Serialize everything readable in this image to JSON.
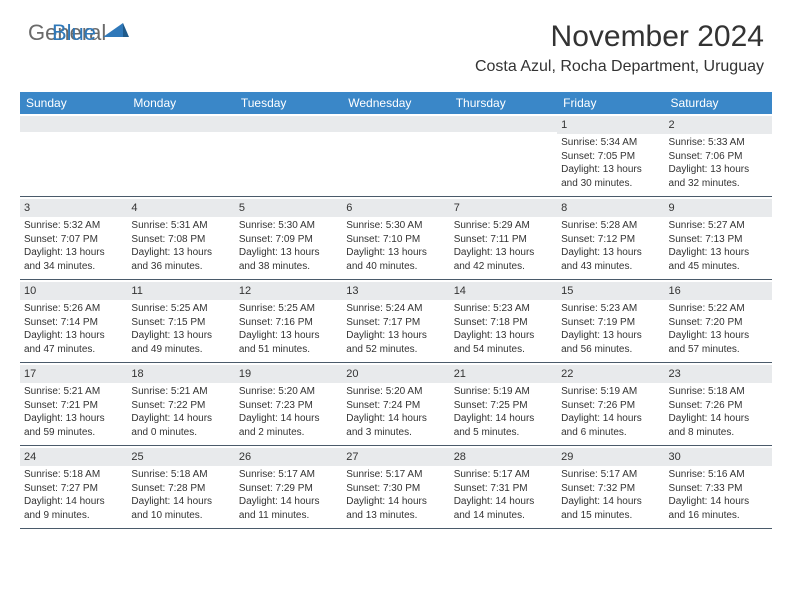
{
  "brand": {
    "text1": "General",
    "text2": "Blue"
  },
  "title": "November 2024",
  "location": "Costa Azul, Rocha Department, Uruguay",
  "colors": {
    "header_bg": "#3a87c8",
    "header_text": "#ffffff",
    "daynum_bg": "#e8eaec",
    "border": "#4a5a6a",
    "brand_gray": "#6a6a6a",
    "brand_blue": "#2f78b9",
    "body_text": "#333333"
  },
  "dayNames": [
    "Sunday",
    "Monday",
    "Tuesday",
    "Wednesday",
    "Thursday",
    "Friday",
    "Saturday"
  ],
  "weeks": [
    [
      {
        "n": "",
        "sr": "",
        "ss": "",
        "dl": ""
      },
      {
        "n": "",
        "sr": "",
        "ss": "",
        "dl": ""
      },
      {
        "n": "",
        "sr": "",
        "ss": "",
        "dl": ""
      },
      {
        "n": "",
        "sr": "",
        "ss": "",
        "dl": ""
      },
      {
        "n": "",
        "sr": "",
        "ss": "",
        "dl": ""
      },
      {
        "n": "1",
        "sr": "Sunrise: 5:34 AM",
        "ss": "Sunset: 7:05 PM",
        "dl": "Daylight: 13 hours and 30 minutes."
      },
      {
        "n": "2",
        "sr": "Sunrise: 5:33 AM",
        "ss": "Sunset: 7:06 PM",
        "dl": "Daylight: 13 hours and 32 minutes."
      }
    ],
    [
      {
        "n": "3",
        "sr": "Sunrise: 5:32 AM",
        "ss": "Sunset: 7:07 PM",
        "dl": "Daylight: 13 hours and 34 minutes."
      },
      {
        "n": "4",
        "sr": "Sunrise: 5:31 AM",
        "ss": "Sunset: 7:08 PM",
        "dl": "Daylight: 13 hours and 36 minutes."
      },
      {
        "n": "5",
        "sr": "Sunrise: 5:30 AM",
        "ss": "Sunset: 7:09 PM",
        "dl": "Daylight: 13 hours and 38 minutes."
      },
      {
        "n": "6",
        "sr": "Sunrise: 5:30 AM",
        "ss": "Sunset: 7:10 PM",
        "dl": "Daylight: 13 hours and 40 minutes."
      },
      {
        "n": "7",
        "sr": "Sunrise: 5:29 AM",
        "ss": "Sunset: 7:11 PM",
        "dl": "Daylight: 13 hours and 42 minutes."
      },
      {
        "n": "8",
        "sr": "Sunrise: 5:28 AM",
        "ss": "Sunset: 7:12 PM",
        "dl": "Daylight: 13 hours and 43 minutes."
      },
      {
        "n": "9",
        "sr": "Sunrise: 5:27 AM",
        "ss": "Sunset: 7:13 PM",
        "dl": "Daylight: 13 hours and 45 minutes."
      }
    ],
    [
      {
        "n": "10",
        "sr": "Sunrise: 5:26 AM",
        "ss": "Sunset: 7:14 PM",
        "dl": "Daylight: 13 hours and 47 minutes."
      },
      {
        "n": "11",
        "sr": "Sunrise: 5:25 AM",
        "ss": "Sunset: 7:15 PM",
        "dl": "Daylight: 13 hours and 49 minutes."
      },
      {
        "n": "12",
        "sr": "Sunrise: 5:25 AM",
        "ss": "Sunset: 7:16 PM",
        "dl": "Daylight: 13 hours and 51 minutes."
      },
      {
        "n": "13",
        "sr": "Sunrise: 5:24 AM",
        "ss": "Sunset: 7:17 PM",
        "dl": "Daylight: 13 hours and 52 minutes."
      },
      {
        "n": "14",
        "sr": "Sunrise: 5:23 AM",
        "ss": "Sunset: 7:18 PM",
        "dl": "Daylight: 13 hours and 54 minutes."
      },
      {
        "n": "15",
        "sr": "Sunrise: 5:23 AM",
        "ss": "Sunset: 7:19 PM",
        "dl": "Daylight: 13 hours and 56 minutes."
      },
      {
        "n": "16",
        "sr": "Sunrise: 5:22 AM",
        "ss": "Sunset: 7:20 PM",
        "dl": "Daylight: 13 hours and 57 minutes."
      }
    ],
    [
      {
        "n": "17",
        "sr": "Sunrise: 5:21 AM",
        "ss": "Sunset: 7:21 PM",
        "dl": "Daylight: 13 hours and 59 minutes."
      },
      {
        "n": "18",
        "sr": "Sunrise: 5:21 AM",
        "ss": "Sunset: 7:22 PM",
        "dl": "Daylight: 14 hours and 0 minutes."
      },
      {
        "n": "19",
        "sr": "Sunrise: 5:20 AM",
        "ss": "Sunset: 7:23 PM",
        "dl": "Daylight: 14 hours and 2 minutes."
      },
      {
        "n": "20",
        "sr": "Sunrise: 5:20 AM",
        "ss": "Sunset: 7:24 PM",
        "dl": "Daylight: 14 hours and 3 minutes."
      },
      {
        "n": "21",
        "sr": "Sunrise: 5:19 AM",
        "ss": "Sunset: 7:25 PM",
        "dl": "Daylight: 14 hours and 5 minutes."
      },
      {
        "n": "22",
        "sr": "Sunrise: 5:19 AM",
        "ss": "Sunset: 7:26 PM",
        "dl": "Daylight: 14 hours and 6 minutes."
      },
      {
        "n": "23",
        "sr": "Sunrise: 5:18 AM",
        "ss": "Sunset: 7:26 PM",
        "dl": "Daylight: 14 hours and 8 minutes."
      }
    ],
    [
      {
        "n": "24",
        "sr": "Sunrise: 5:18 AM",
        "ss": "Sunset: 7:27 PM",
        "dl": "Daylight: 14 hours and 9 minutes."
      },
      {
        "n": "25",
        "sr": "Sunrise: 5:18 AM",
        "ss": "Sunset: 7:28 PM",
        "dl": "Daylight: 14 hours and 10 minutes."
      },
      {
        "n": "26",
        "sr": "Sunrise: 5:17 AM",
        "ss": "Sunset: 7:29 PM",
        "dl": "Daylight: 14 hours and 11 minutes."
      },
      {
        "n": "27",
        "sr": "Sunrise: 5:17 AM",
        "ss": "Sunset: 7:30 PM",
        "dl": "Daylight: 14 hours and 13 minutes."
      },
      {
        "n": "28",
        "sr": "Sunrise: 5:17 AM",
        "ss": "Sunset: 7:31 PM",
        "dl": "Daylight: 14 hours and 14 minutes."
      },
      {
        "n": "29",
        "sr": "Sunrise: 5:17 AM",
        "ss": "Sunset: 7:32 PM",
        "dl": "Daylight: 14 hours and 15 minutes."
      },
      {
        "n": "30",
        "sr": "Sunrise: 5:16 AM",
        "ss": "Sunset: 7:33 PM",
        "dl": "Daylight: 14 hours and 16 minutes."
      }
    ]
  ]
}
